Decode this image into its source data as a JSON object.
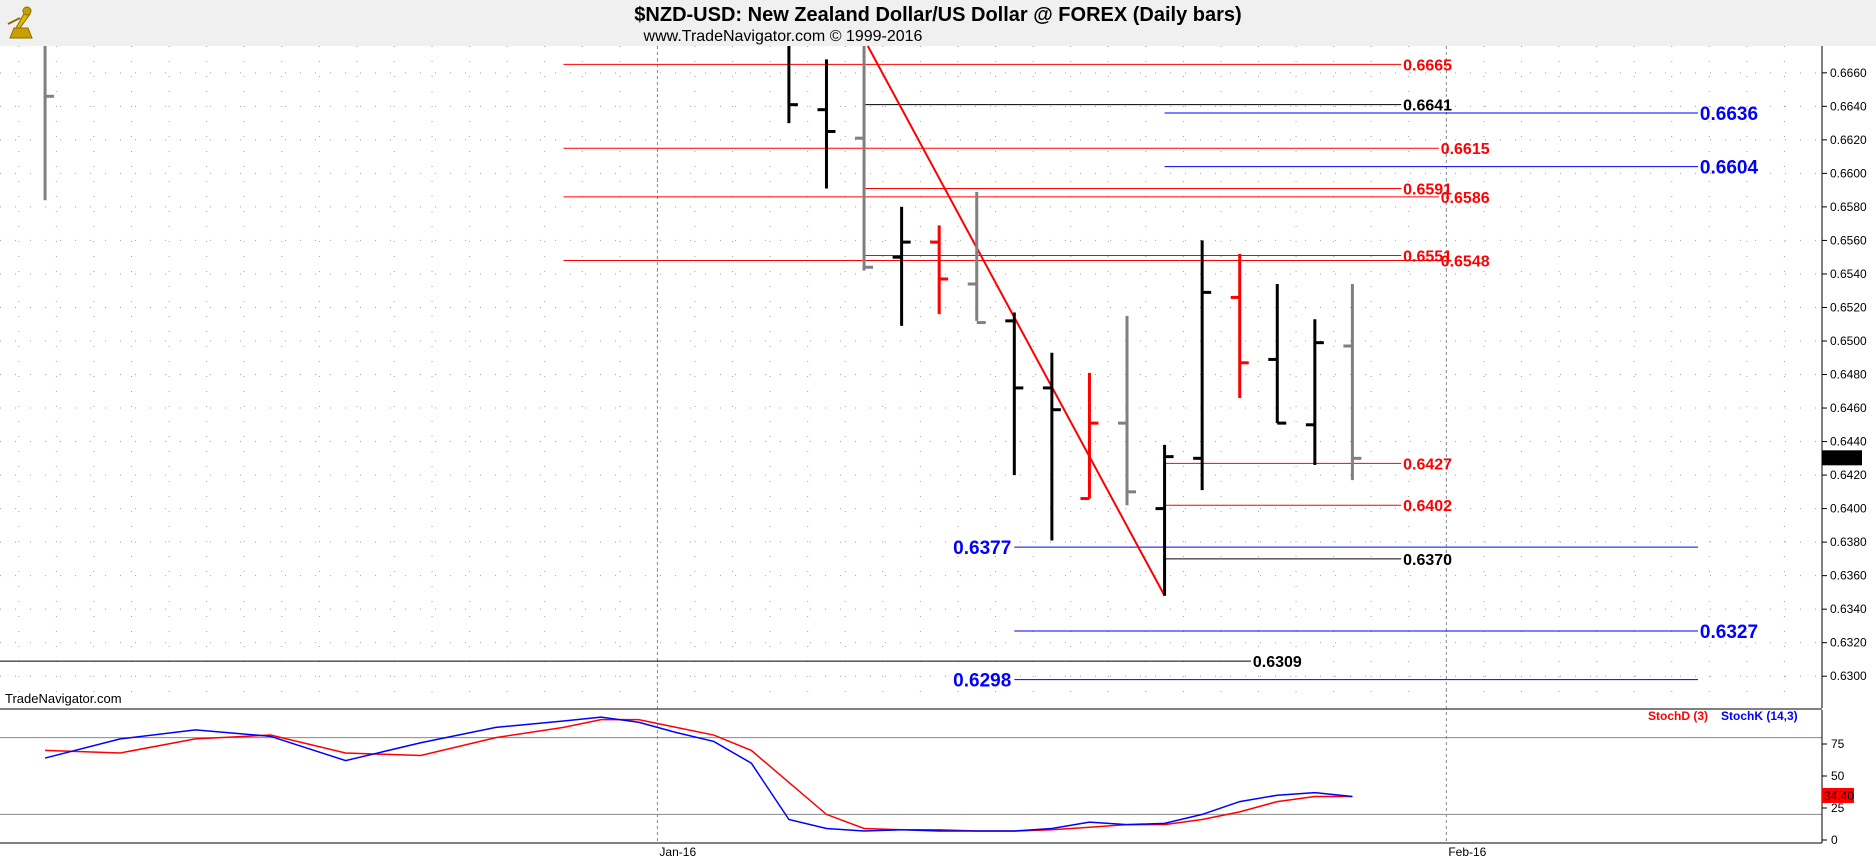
{
  "header": {
    "title": "$NZD-USD:  New Zealand Dollar/US Dollar @ FOREX  (Daily bars)",
    "subtitle": "www.TradeNavigator.com © 1999-2016",
    "watermark": "TradeNavigator.com"
  },
  "colors": {
    "red": "#ff0000",
    "blue": "#0000ff",
    "black": "#000000",
    "gray": "#808080",
    "grid": "#a0a0a0"
  },
  "chart_data": {
    "type": "ohlc",
    "price_axis": {
      "ylim": [
        0.6287,
        0.6676
      ],
      "ticks": [
        "0.6660",
        "0.6640",
        "0.6620",
        "0.6600",
        "0.6580",
        "0.6560",
        "0.6540",
        "0.6520",
        "0.6500",
        "0.6480",
        "0.6460",
        "0.6440",
        "0.6420",
        "0.6400",
        "0.6380",
        "0.6360",
        "0.6340",
        "0.6320",
        "0.6300"
      ],
      "last_price": "0.6430"
    },
    "x_axis": {
      "labels": [
        {
          "text": "Jan-16",
          "bar": 0
        },
        {
          "text": "Feb-16",
          "bar": 21
        }
      ],
      "xlim": [
        -17.5,
        31
      ]
    },
    "bars": [
      {
        "x": -16.3,
        "o": null,
        "h": 0.6676,
        "l": 0.6584,
        "c": 0.6646,
        "color": "gray"
      },
      {
        "x": 3.5,
        "o": null,
        "h": 0.6676,
        "l": 0.663,
        "c": 0.6641,
        "color": "black"
      },
      {
        "x": 4.5,
        "o": 0.6638,
        "h": 0.6668,
        "l": 0.6591,
        "c": 0.6625,
        "color": "black"
      },
      {
        "x": 5.5,
        "o": 0.6621,
        "h": 0.6676,
        "l": 0.6542,
        "c": 0.6544,
        "color": "gray"
      },
      {
        "x": 6.5,
        "o": 0.655,
        "h": 0.658,
        "l": 0.6509,
        "c": 0.6559,
        "color": "black"
      },
      {
        "x": 7.5,
        "o": 0.6559,
        "h": 0.6569,
        "l": 0.6516,
        "c": 0.6537,
        "color": "red"
      },
      {
        "x": 8.5,
        "o": 0.6534,
        "h": 0.6589,
        "l": 0.6512,
        "c": 0.6511,
        "color": "gray"
      },
      {
        "x": 9.5,
        "o": 0.6512,
        "h": 0.6517,
        "l": 0.642,
        "c": 0.6472,
        "color": "black"
      },
      {
        "x": 10.5,
        "o": 0.6472,
        "h": 0.6493,
        "l": 0.6381,
        "c": 0.6459,
        "color": "black"
      },
      {
        "x": 11.5,
        "o": 0.6406,
        "h": 0.6481,
        "l": 0.6406,
        "c": 0.6451,
        "color": "red"
      },
      {
        "x": 12.5,
        "o": 0.6451,
        "h": 0.6515,
        "l": 0.6402,
        "c": 0.641,
        "color": "gray"
      },
      {
        "x": 13.5,
        "o": 0.64,
        "h": 0.6438,
        "l": 0.6348,
        "c": 0.6431,
        "color": "black"
      },
      {
        "x": 14.5,
        "o": 0.643,
        "h": 0.656,
        "l": 0.6411,
        "c": 0.6529,
        "color": "black"
      },
      {
        "x": 15.5,
        "o": 0.6526,
        "h": 0.6552,
        "l": 0.6466,
        "c": 0.6487,
        "color": "red"
      },
      {
        "x": 16.5,
        "o": 0.6489,
        "h": 0.6534,
        "l": 0.6451,
        "c": 0.6451,
        "color": "black"
      },
      {
        "x": 17.5,
        "o": 0.645,
        "h": 0.6513,
        "l": 0.6426,
        "c": 0.6499,
        "color": "black"
      },
      {
        "x": 18.5,
        "o": 0.6497,
        "h": 0.6534,
        "l": 0.6417,
        "c": 0.643,
        "color": "gray"
      }
    ],
    "trendline": {
      "x1": 5.6,
      "y1": 0.6676,
      "x2": 13.5,
      "y2": 0.6348,
      "color": "red"
    },
    "levels": [
      {
        "value": 0.6665,
        "label": "0.6665",
        "x1": -2.5,
        "x2": 19.8,
        "color": "red",
        "label_x": 19.85,
        "size": "n"
      },
      {
        "value": 0.6641,
        "label": "0.6641",
        "x1": 5.5,
        "x2": 19.8,
        "color": "black",
        "label_x": 19.85,
        "size": "n"
      },
      {
        "value": 0.6636,
        "label": "0.6636",
        "x1": 13.5,
        "x2": 27.7,
        "color": "blue",
        "label_x": 27.75,
        "size": "b"
      },
      {
        "value": 0.6615,
        "label": "0.6615",
        "x1": -2.5,
        "x2": 20.8,
        "color": "red",
        "label_x": 20.85,
        "size": "n"
      },
      {
        "value": 0.6604,
        "label": "0.6604",
        "x1": 13.5,
        "x2": 27.7,
        "color": "blue",
        "label_x": 27.75,
        "size": "b"
      },
      {
        "value": 0.6591,
        "label": "0.6591",
        "x1": 5.5,
        "x2": 19.8,
        "color": "red",
        "label_x": 19.85,
        "size": "n"
      },
      {
        "value": 0.6586,
        "label": "0.6586",
        "x1": -2.5,
        "x2": 20.8,
        "color": "red",
        "label_x": 20.85,
        "size": "n"
      },
      {
        "value": 0.6551,
        "label": "0.6551",
        "x1": 5.5,
        "x2": 19.8,
        "color": "red",
        "label_x": 19.85,
        "size": "n"
      },
      {
        "value": 0.6548,
        "label": "0.6548",
        "x1": -2.5,
        "x2": 20.8,
        "color": "red",
        "label_x": 20.85,
        "size": "n"
      },
      {
        "value": 0.6427,
        "label": "0.6427",
        "x1": 13.5,
        "x2": 19.8,
        "color": "red",
        "label_x": 19.85,
        "size": "n"
      },
      {
        "value": 0.6402,
        "label": "0.6402",
        "x1": 13.5,
        "x2": 19.8,
        "color": "red",
        "label_x": 19.85,
        "size": "n"
      },
      {
        "value": 0.6377,
        "label": "0.6377",
        "x1": 9.5,
        "x2": 27.7,
        "color": "blue",
        "label_x": 8.2,
        "size": "b"
      },
      {
        "value": 0.637,
        "label": "0.6370",
        "x1": 13.5,
        "x2": 19.8,
        "color": "black",
        "label_x": 19.85,
        "size": "n"
      },
      {
        "value": 0.6327,
        "label": "0.6327",
        "x1": 9.5,
        "x2": 27.7,
        "color": "blue",
        "label_x": 27.75,
        "size": "b"
      },
      {
        "value": 0.6309,
        "label": "0.6309",
        "x1": -17.5,
        "x2": 15.8,
        "color": "black",
        "label_x": 15.85,
        "size": "n"
      },
      {
        "value": 0.6298,
        "label": "0.6298",
        "x1": 9.5,
        "x2": 27.7,
        "color": "blue",
        "label_x": 8.2,
        "size": "b"
      }
    ],
    "stochastic": {
      "ylim": [
        0,
        100
      ],
      "ticks": [
        "75",
        "50",
        "25",
        "0"
      ],
      "overbought": 80,
      "oversold": 20,
      "last_value": "34.40",
      "legend": [
        {
          "name": "StochD (3)",
          "color": "red"
        },
        {
          "name": "StochK (14,3)",
          "color": "blue"
        }
      ],
      "x": [
        -16.3,
        -14.3,
        -12.3,
        -10.3,
        -8.3,
        -6.3,
        -4.3,
        -2.5,
        -1.5,
        -0.5,
        0.5,
        1.5,
        2.5,
        3.5,
        4.5,
        5.5,
        6.5,
        7.5,
        8.5,
        9.5,
        10.5,
        11.5,
        12.5,
        13.5,
        14.5,
        15.5,
        16.5,
        17.5,
        18.5
      ],
      "k": [
        64,
        79,
        86,
        81,
        62,
        76,
        88,
        93,
        96,
        92,
        84,
        77,
        60,
        16,
        9,
        7,
        8,
        7,
        7,
        7,
        9,
        14,
        12,
        13,
        20,
        30,
        35,
        37,
        34
      ],
      "d": [
        70,
        68,
        79,
        82,
        68,
        66,
        80,
        88,
        94,
        94,
        88,
        82,
        70,
        45,
        20,
        9,
        8,
        8,
        7,
        7,
        8,
        10,
        12,
        12,
        16,
        22,
        30,
        34,
        34
      ]
    }
  }
}
